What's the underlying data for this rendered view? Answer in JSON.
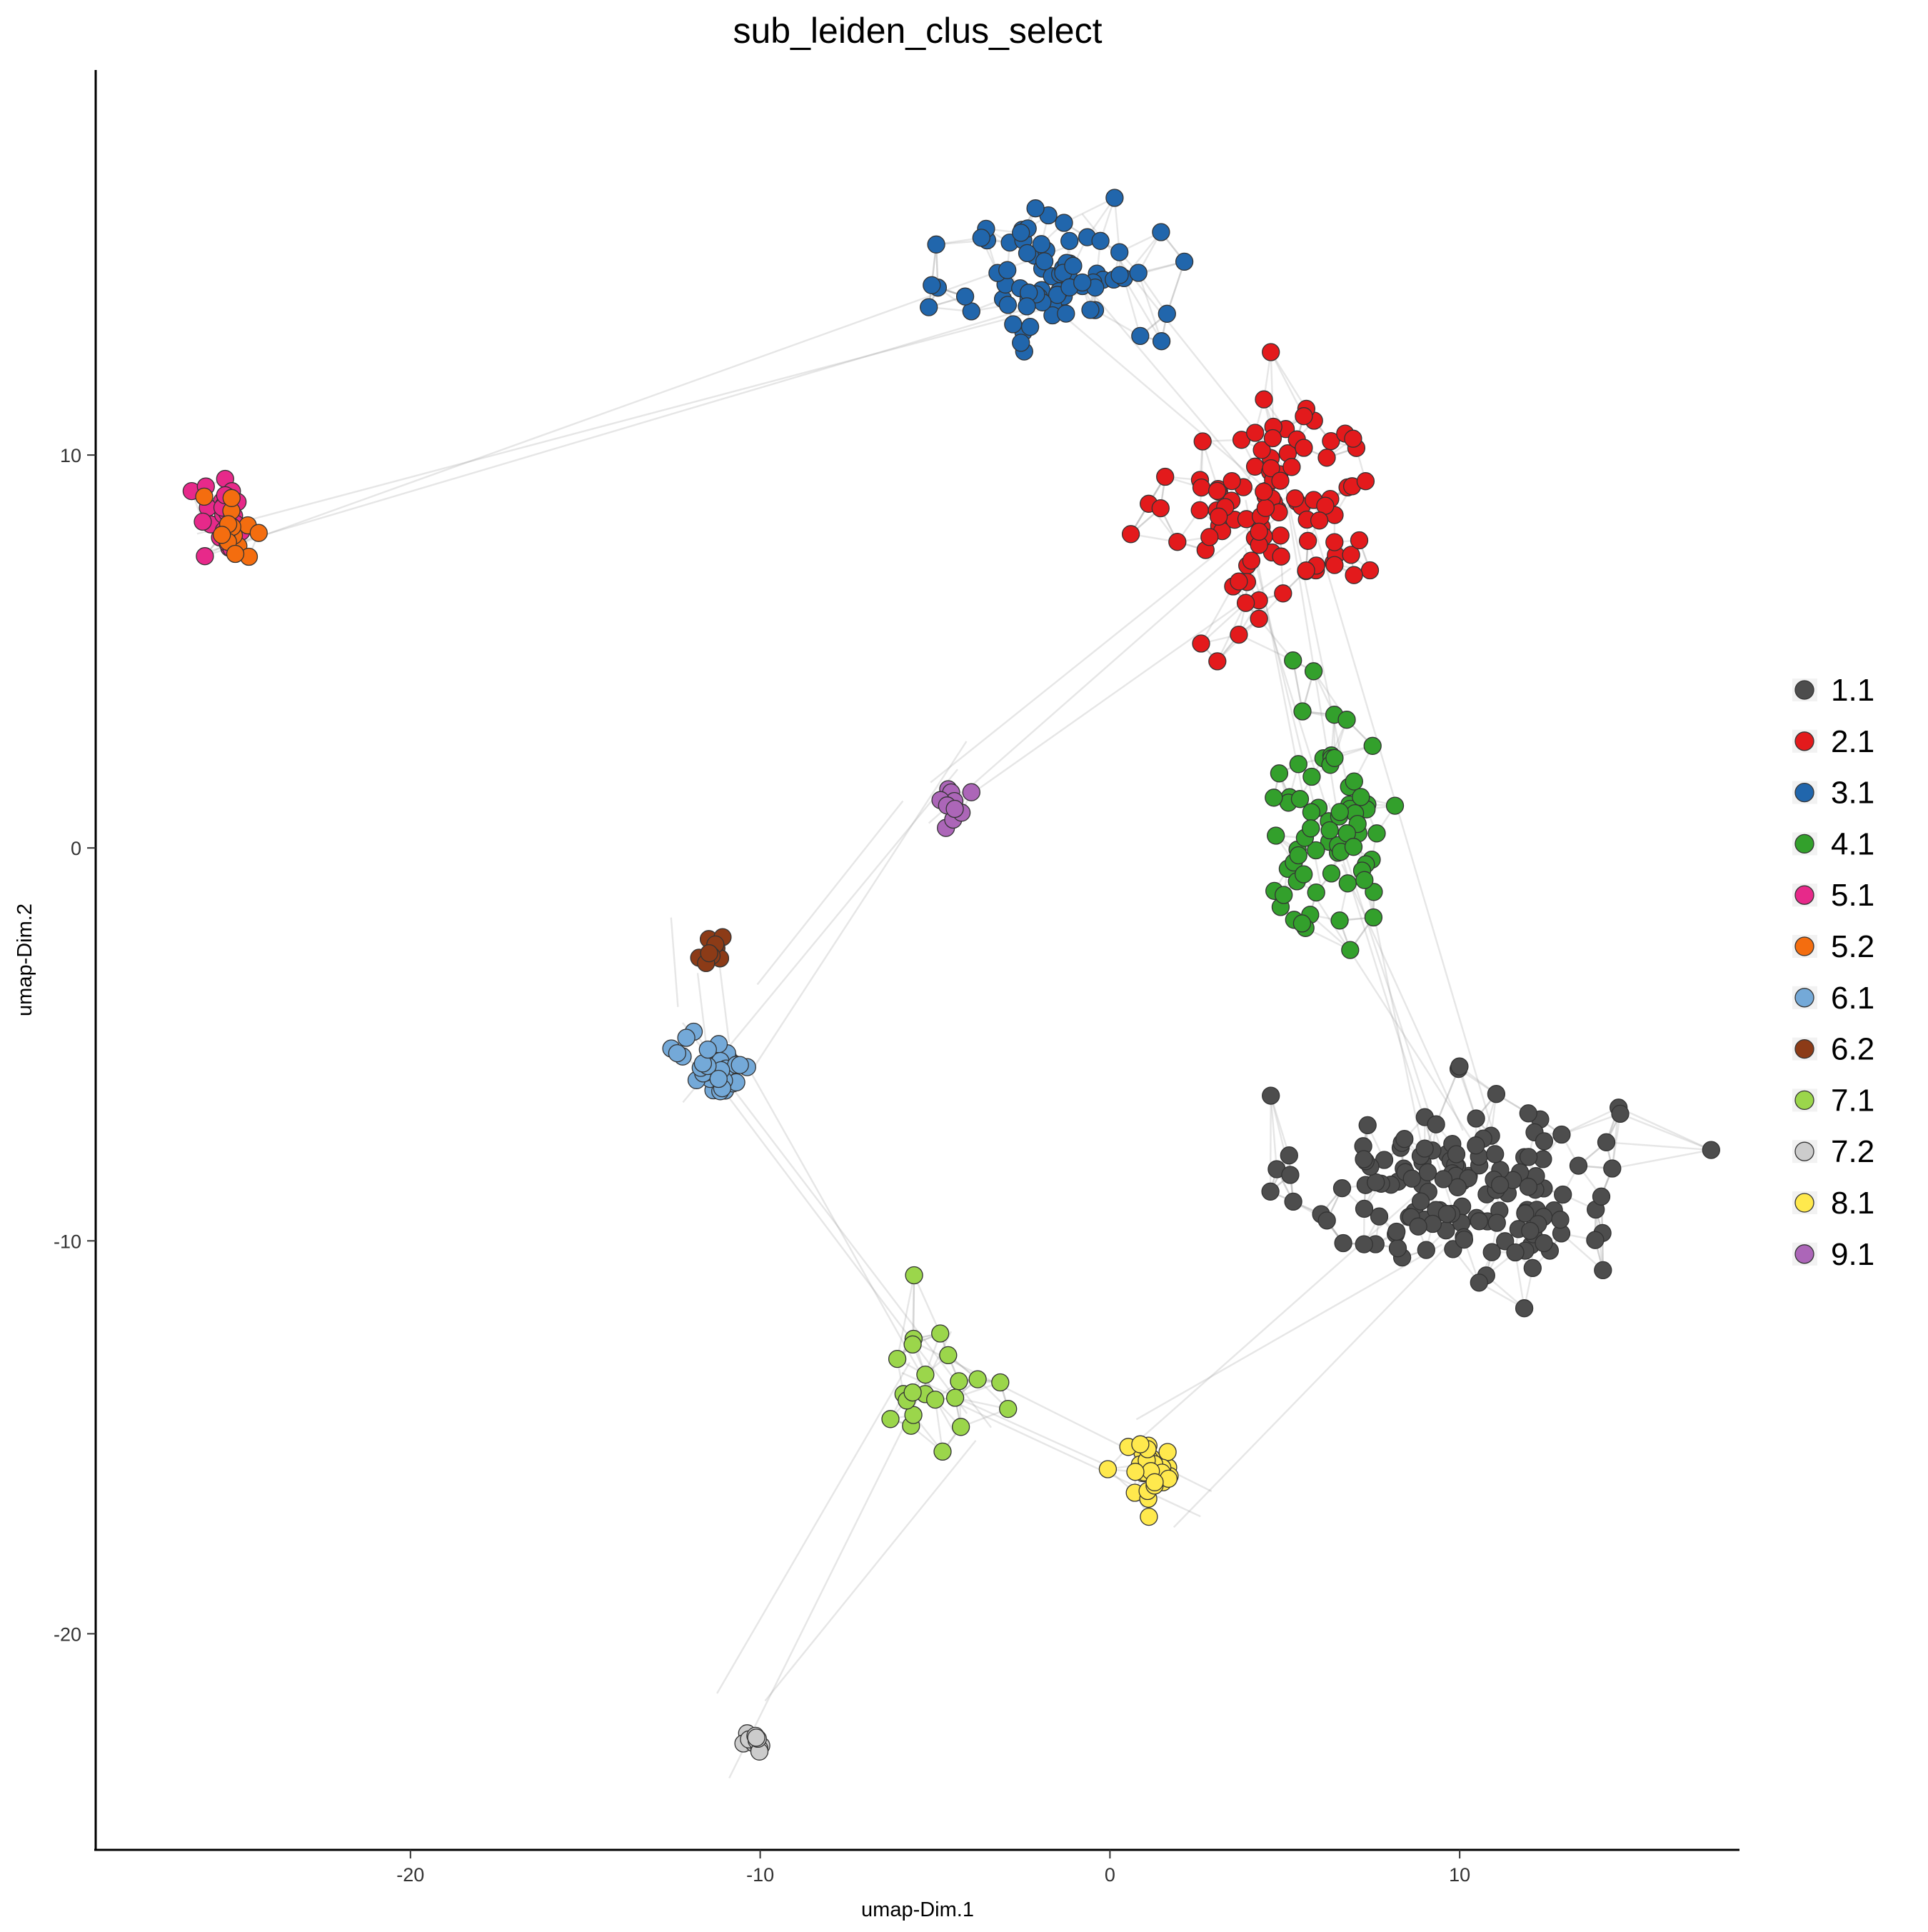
{
  "chart_data": {
    "type": "scatter",
    "title": "sub_leiden_clus_select",
    "xlabel": "umap-Dim.1",
    "ylabel": "umap-Dim.2",
    "xlim": [
      -29,
      18
    ],
    "ylim": [
      -25.5,
      19.8
    ],
    "x_ticks": [
      -20,
      -10,
      0,
      10
    ],
    "y_ticks": [
      -20,
      -10,
      0,
      10
    ],
    "grid": false,
    "legend_position": "right",
    "network_edges": true,
    "clusters": [
      {
        "name": "1.1",
        "color": "#4d4d4d",
        "center": [
          10,
          -8.6
        ],
        "spread": [
          3.6,
          1.9
        ],
        "count": 150
      },
      {
        "name": "2.1",
        "color": "#e31a1c",
        "center": [
          4.8,
          8.6
        ],
        "spread": [
          2.4,
          2.4
        ],
        "count": 105
      },
      {
        "name": "3.1",
        "color": "#2166ac",
        "center": [
          -1.5,
          14.6
        ],
        "spread": [
          2.3,
          1.6
        ],
        "count": 80
      },
      {
        "name": "4.1",
        "color": "#33a02c",
        "center": [
          6.3,
          0.6
        ],
        "spread": [
          1.6,
          2.4
        ],
        "count": 70
      },
      {
        "name": "5.1",
        "color": "#e7298a",
        "center": [
          -25.3,
          8.3
        ],
        "spread": [
          0.6,
          0.8
        ],
        "count": 30
      },
      {
        "name": "5.2",
        "color": "#f46d0f",
        "center": [
          -25.1,
          8.0
        ],
        "spread": [
          0.7,
          0.8
        ],
        "count": 15
      },
      {
        "name": "6.1",
        "color": "#74a9d8",
        "center": [
          -11.2,
          -5.5
        ],
        "spread": [
          0.8,
          0.6
        ],
        "count": 40
      },
      {
        "name": "6.2",
        "color": "#8c3b17",
        "center": [
          -11.4,
          -2.7
        ],
        "spread": [
          0.4,
          0.4
        ],
        "count": 10
      },
      {
        "name": "7.1",
        "color": "#9bd64b",
        "center": [
          -5.1,
          -13.5
        ],
        "spread": [
          1.2,
          1.4
        ],
        "count": 22
      },
      {
        "name": "7.2",
        "color": "#cccccc",
        "center": [
          -10.2,
          -22.8
        ],
        "spread": [
          0.3,
          0.25
        ],
        "count": 12
      },
      {
        "name": "8.1",
        "color": "#ffe94d",
        "center": [
          1.2,
          -15.8
        ],
        "spread": [
          0.7,
          0.6
        ],
        "count": 35
      },
      {
        "name": "9.1",
        "color": "#ac66b8",
        "center": [
          -4.5,
          1.1
        ],
        "spread": [
          0.3,
          0.5
        ],
        "count": 10
      }
    ]
  }
}
